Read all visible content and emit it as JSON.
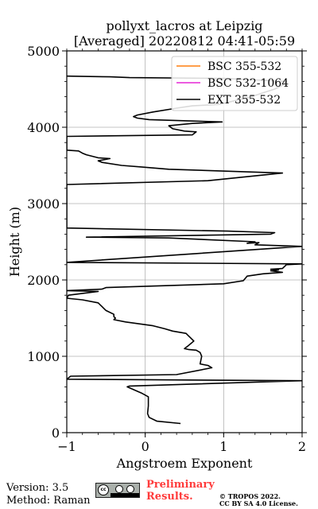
{
  "chart_data": {
    "type": "line",
    "title": "pollyxt_lacros at Leipzig",
    "subtitle": "[Averaged] 20220812 04:41-05:59",
    "xlabel": "Angstroem Exponent",
    "ylabel": "Height (m)",
    "xlim": [
      -1,
      2
    ],
    "ylim": [
      0,
      5000
    ],
    "xticks": [
      -1,
      0,
      1,
      2
    ],
    "yticks": [
      0,
      1000,
      2000,
      3000,
      4000,
      5000
    ],
    "grid": true,
    "legend_position": "top-right",
    "series": [
      {
        "name": "BSC 355-532",
        "color": "#ff7f0e",
        "points": []
      },
      {
        "name": "BSC 532-1064",
        "color": "#e526d6",
        "points": []
      },
      {
        "name": "EXT 355-532",
        "color": "#000000",
        "points": [
          [
            0.45,
            120
          ],
          [
            0.15,
            150
          ],
          [
            0.05,
            200
          ],
          [
            0.03,
            250
          ],
          [
            0.04,
            350
          ],
          [
            0.04,
            470
          ],
          [
            -0.05,
            520
          ],
          [
            -0.23,
            600
          ],
          [
            -0.2,
            610
          ],
          [
            2.0,
            680
          ],
          [
            -1.0,
            700
          ],
          [
            -0.95,
            740
          ],
          [
            0.4,
            760
          ],
          [
            0.85,
            850
          ],
          [
            0.8,
            880
          ],
          [
            0.7,
            900
          ],
          [
            0.72,
            1000
          ],
          [
            0.7,
            1050
          ],
          [
            0.65,
            1080
          ],
          [
            0.55,
            1090
          ],
          [
            0.5,
            1100
          ],
          [
            0.55,
            1140
          ],
          [
            0.62,
            1200
          ],
          [
            0.55,
            1270
          ],
          [
            0.52,
            1300
          ],
          [
            0.35,
            1330
          ],
          [
            0.25,
            1360
          ],
          [
            0.1,
            1400
          ],
          [
            -0.25,
            1450
          ],
          [
            -0.35,
            1470
          ],
          [
            -0.4,
            1480
          ],
          [
            -0.38,
            1500
          ],
          [
            -0.4,
            1520
          ],
          [
            -0.4,
            1550
          ],
          [
            -0.5,
            1600
          ],
          [
            -0.55,
            1650
          ],
          [
            -0.6,
            1700
          ],
          [
            -0.8,
            1740
          ],
          [
            -1.0,
            1760
          ],
          [
            -0.98,
            1800
          ],
          [
            -0.6,
            1850
          ],
          [
            -1.0,
            1860
          ],
          [
            -0.55,
            1880
          ],
          [
            -0.5,
            1900
          ],
          [
            1.0,
            1950
          ],
          [
            1.25,
            1990
          ],
          [
            1.3,
            2050
          ],
          [
            1.5,
            2080
          ],
          [
            1.75,
            2100
          ],
          [
            1.6,
            2120
          ],
          [
            1.7,
            2130
          ],
          [
            1.6,
            2140
          ],
          [
            1.75,
            2150
          ],
          [
            1.8,
            2200
          ],
          [
            2.0,
            2210
          ],
          [
            -1.0,
            2230
          ],
          [
            2.0,
            2440
          ],
          [
            1.4,
            2460
          ],
          [
            1.45,
            2490
          ],
          [
            1.3,
            2480
          ],
          [
            1.4,
            2500
          ],
          [
            0.3,
            2550
          ],
          [
            -0.75,
            2560
          ],
          [
            1.6,
            2600
          ],
          [
            1.65,
            2620
          ],
          [
            1.05,
            2640
          ],
          [
            -1.0,
            2680
          ],
          [
            -1.0,
            3250
          ],
          [
            0.8,
            3300
          ],
          [
            1.75,
            3400
          ],
          [
            0.3,
            3450
          ],
          [
            -0.05,
            3480
          ],
          [
            -0.3,
            3500
          ],
          [
            -0.55,
            3540
          ],
          [
            -0.6,
            3560
          ],
          [
            -0.45,
            3590
          ],
          [
            -0.6,
            3600
          ],
          [
            -0.75,
            3640
          ],
          [
            -0.8,
            3660
          ],
          [
            -0.85,
            3690
          ],
          [
            -1.0,
            3700
          ],
          [
            -1.0,
            3880
          ],
          [
            0.6,
            3900
          ],
          [
            0.65,
            3940
          ],
          [
            0.5,
            3950
          ],
          [
            0.35,
            3980
          ],
          [
            0.3,
            4020
          ],
          [
            0.6,
            4050
          ],
          [
            0.98,
            4070
          ],
          [
            0.05,
            4100
          ],
          [
            -0.1,
            4120
          ],
          [
            -0.15,
            4140
          ],
          [
            -0.1,
            4160
          ],
          [
            0.1,
            4200
          ],
          [
            0.4,
            4250
          ],
          [
            0.6,
            4280
          ],
          [
            0.95,
            4300
          ],
          [
            1.15,
            4350
          ],
          [
            1.35,
            4400
          ],
          [
            1.5,
            4450
          ],
          [
            1.65,
            4500
          ],
          [
            1.75,
            4550
          ],
          [
            1.8,
            4600
          ],
          [
            1.2,
            4630
          ],
          [
            1.0,
            4640
          ],
          [
            -0.2,
            4650
          ],
          [
            -0.45,
            4660
          ],
          [
            -1.0,
            4670
          ]
        ]
      }
    ]
  },
  "footer": {
    "version": "Version: 3.5",
    "method": "Method: Raman",
    "preliminary_line1": "Preliminary",
    "preliminary_line2": "Results.",
    "copyright_line1": "© TROPOS 2022.",
    "copyright_line2": "CC BY SA 4.0 License."
  },
  "badge": {
    "cc_text": "cc",
    "by_text": "BY",
    "sa_text": "SA",
    "icon": "cc-by-sa-icon"
  }
}
